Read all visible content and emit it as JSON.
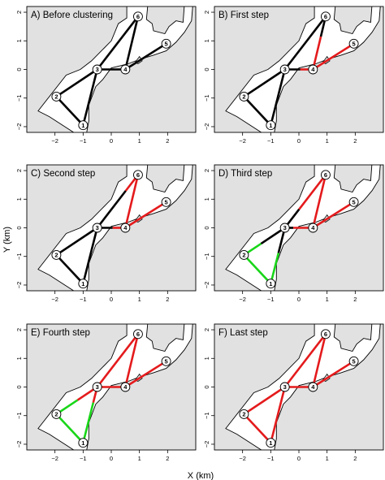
{
  "figure": {
    "xlabel": "X (km)",
    "ylabel": "Y (km)"
  },
  "chart_data": {
    "type": "network",
    "xlim": [
      -3,
      3
    ],
    "ylim": [
      -2.2,
      2.2
    ],
    "x_ticks": [
      -2,
      -1,
      0,
      1,
      2
    ],
    "y_ticks": [
      -2,
      -1,
      0,
      1,
      2
    ],
    "colors": {
      "black": "#000000",
      "red": "#e41a1c",
      "green": "#19d619",
      "land": "#e1e1e1",
      "water": "#ffffff"
    },
    "nodes": [
      {
        "id": "1",
        "x": -1.0,
        "y": -1.95
      },
      {
        "id": "2",
        "x": -1.95,
        "y": -0.95
      },
      {
        "id": "3",
        "x": -0.5,
        "y": 0.0
      },
      {
        "id": "4",
        "x": 0.5,
        "y": 0.0
      },
      {
        "id": "5",
        "x": 1.95,
        "y": 0.9
      },
      {
        "id": "6",
        "x": 0.95,
        "y": 1.85
      }
    ],
    "panels": [
      {
        "title": "A) Before clustering",
        "edges": [
          {
            "from": "1",
            "to": "2",
            "segments": [
              {
                "t0": 0,
                "t1": 1,
                "color": "black"
              }
            ]
          },
          {
            "from": "1",
            "to": "3",
            "segments": [
              {
                "t0": 0,
                "t1": 1,
                "color": "black"
              }
            ]
          },
          {
            "from": "2",
            "to": "3",
            "segments": [
              {
                "t0": 0,
                "t1": 1,
                "color": "black"
              }
            ]
          },
          {
            "from": "3",
            "to": "4",
            "segments": [
              {
                "t0": 0,
                "t1": 1,
                "color": "black"
              }
            ]
          },
          {
            "from": "3",
            "to": "6",
            "segments": [
              {
                "t0": 0,
                "t1": 1,
                "color": "black"
              }
            ]
          },
          {
            "from": "4",
            "to": "6",
            "segments": [
              {
                "t0": 0,
                "t1": 1,
                "color": "black"
              }
            ]
          },
          {
            "from": "4",
            "to": "5",
            "segments": [
              {
                "t0": 0,
                "t1": 1,
                "color": "black"
              }
            ]
          }
        ]
      },
      {
        "title": "B) First step",
        "edges": [
          {
            "from": "1",
            "to": "2",
            "segments": [
              {
                "t0": 0,
                "t1": 1,
                "color": "black"
              }
            ]
          },
          {
            "from": "1",
            "to": "3",
            "segments": [
              {
                "t0": 0,
                "t1": 1,
                "color": "black"
              }
            ]
          },
          {
            "from": "2",
            "to": "3",
            "segments": [
              {
                "t0": 0,
                "t1": 1,
                "color": "black"
              }
            ]
          },
          {
            "from": "3",
            "to": "4",
            "segments": [
              {
                "t0": 0,
                "t1": 0.55,
                "color": "black"
              },
              {
                "t0": 0.55,
                "t1": 1,
                "color": "red"
              }
            ]
          },
          {
            "from": "3",
            "to": "6",
            "segments": [
              {
                "t0": 0,
                "t1": 1,
                "color": "black"
              }
            ]
          },
          {
            "from": "4",
            "to": "6",
            "segments": [
              {
                "t0": 0,
                "t1": 0.62,
                "color": "red"
              },
              {
                "t0": 0.62,
                "t1": 1,
                "color": "black"
              }
            ]
          },
          {
            "from": "4",
            "to": "5",
            "segments": [
              {
                "t0": 0,
                "t1": 1,
                "color": "red"
              }
            ]
          }
        ]
      },
      {
        "title": "C) Second step",
        "edges": [
          {
            "from": "1",
            "to": "2",
            "segments": [
              {
                "t0": 0,
                "t1": 1,
                "color": "black"
              }
            ]
          },
          {
            "from": "1",
            "to": "3",
            "segments": [
              {
                "t0": 0,
                "t1": 1,
                "color": "black"
              }
            ]
          },
          {
            "from": "2",
            "to": "3",
            "segments": [
              {
                "t0": 0,
                "t1": 1,
                "color": "black"
              }
            ]
          },
          {
            "from": "3",
            "to": "4",
            "segments": [
              {
                "t0": 0,
                "t1": 0.55,
                "color": "black"
              },
              {
                "t0": 0.55,
                "t1": 1,
                "color": "red"
              }
            ]
          },
          {
            "from": "3",
            "to": "6",
            "segments": [
              {
                "t0": 0,
                "t1": 0.7,
                "color": "black"
              },
              {
                "t0": 0.7,
                "t1": 1,
                "color": "red"
              }
            ]
          },
          {
            "from": "4",
            "to": "6",
            "segments": [
              {
                "t0": 0,
                "t1": 1,
                "color": "red"
              }
            ]
          },
          {
            "from": "4",
            "to": "5",
            "segments": [
              {
                "t0": 0,
                "t1": 1,
                "color": "red"
              }
            ]
          }
        ]
      },
      {
        "title": "D) Third step",
        "edges": [
          {
            "from": "1",
            "to": "2",
            "segments": [
              {
                "t0": 0,
                "t1": 1,
                "color": "green"
              }
            ]
          },
          {
            "from": "1",
            "to": "3",
            "segments": [
              {
                "t0": 0,
                "t1": 0.55,
                "color": "green"
              },
              {
                "t0": 0.55,
                "t1": 1,
                "color": "black"
              }
            ]
          },
          {
            "from": "2",
            "to": "3",
            "segments": [
              {
                "t0": 0,
                "t1": 0.42,
                "color": "green"
              },
              {
                "t0": 0.42,
                "t1": 1,
                "color": "black"
              }
            ]
          },
          {
            "from": "3",
            "to": "4",
            "segments": [
              {
                "t0": 0,
                "t1": 0.3,
                "color": "black"
              },
              {
                "t0": 0.3,
                "t1": 1,
                "color": "red"
              }
            ]
          },
          {
            "from": "3",
            "to": "6",
            "segments": [
              {
                "t0": 0,
                "t1": 0.35,
                "color": "black"
              },
              {
                "t0": 0.35,
                "t1": 1,
                "color": "red"
              }
            ]
          },
          {
            "from": "4",
            "to": "6",
            "segments": [
              {
                "t0": 0,
                "t1": 1,
                "color": "red"
              }
            ]
          },
          {
            "from": "4",
            "to": "5",
            "segments": [
              {
                "t0": 0,
                "t1": 1,
                "color": "red"
              }
            ]
          }
        ]
      },
      {
        "title": "E) Fourth step",
        "edges": [
          {
            "from": "1",
            "to": "2",
            "segments": [
              {
                "t0": 0,
                "t1": 1,
                "color": "green"
              }
            ]
          },
          {
            "from": "1",
            "to": "3",
            "segments": [
              {
                "t0": 0,
                "t1": 0.72,
                "color": "green"
              },
              {
                "t0": 0.72,
                "t1": 1,
                "color": "red"
              }
            ]
          },
          {
            "from": "2",
            "to": "3",
            "segments": [
              {
                "t0": 0,
                "t1": 0.52,
                "color": "green"
              },
              {
                "t0": 0.52,
                "t1": 1,
                "color": "red"
              }
            ]
          },
          {
            "from": "3",
            "to": "4",
            "segments": [
              {
                "t0": 0,
                "t1": 1,
                "color": "red"
              }
            ]
          },
          {
            "from": "3",
            "to": "6",
            "segments": [
              {
                "t0": 0,
                "t1": 1,
                "color": "red"
              }
            ]
          },
          {
            "from": "4",
            "to": "6",
            "segments": [
              {
                "t0": 0,
                "t1": 1,
                "color": "red"
              }
            ]
          },
          {
            "from": "4",
            "to": "5",
            "segments": [
              {
                "t0": 0,
                "t1": 1,
                "color": "red"
              }
            ]
          }
        ]
      },
      {
        "title": "F) Last step",
        "edges": [
          {
            "from": "1",
            "to": "2",
            "segments": [
              {
                "t0": 0,
                "t1": 1,
                "color": "red"
              }
            ]
          },
          {
            "from": "1",
            "to": "3",
            "segments": [
              {
                "t0": 0,
                "t1": 1,
                "color": "red"
              }
            ]
          },
          {
            "from": "2",
            "to": "3",
            "segments": [
              {
                "t0": 0,
                "t1": 1,
                "color": "red"
              }
            ]
          },
          {
            "from": "3",
            "to": "4",
            "segments": [
              {
                "t0": 0,
                "t1": 1,
                "color": "red"
              }
            ]
          },
          {
            "from": "3",
            "to": "6",
            "segments": [
              {
                "t0": 0,
                "t1": 1,
                "color": "red"
              }
            ]
          },
          {
            "from": "4",
            "to": "6",
            "segments": [
              {
                "t0": 0,
                "t1": 1,
                "color": "red"
              }
            ]
          },
          {
            "from": "4",
            "to": "5",
            "segments": [
              {
                "t0": 0,
                "t1": 1,
                "color": "red"
              }
            ]
          }
        ]
      }
    ]
  }
}
